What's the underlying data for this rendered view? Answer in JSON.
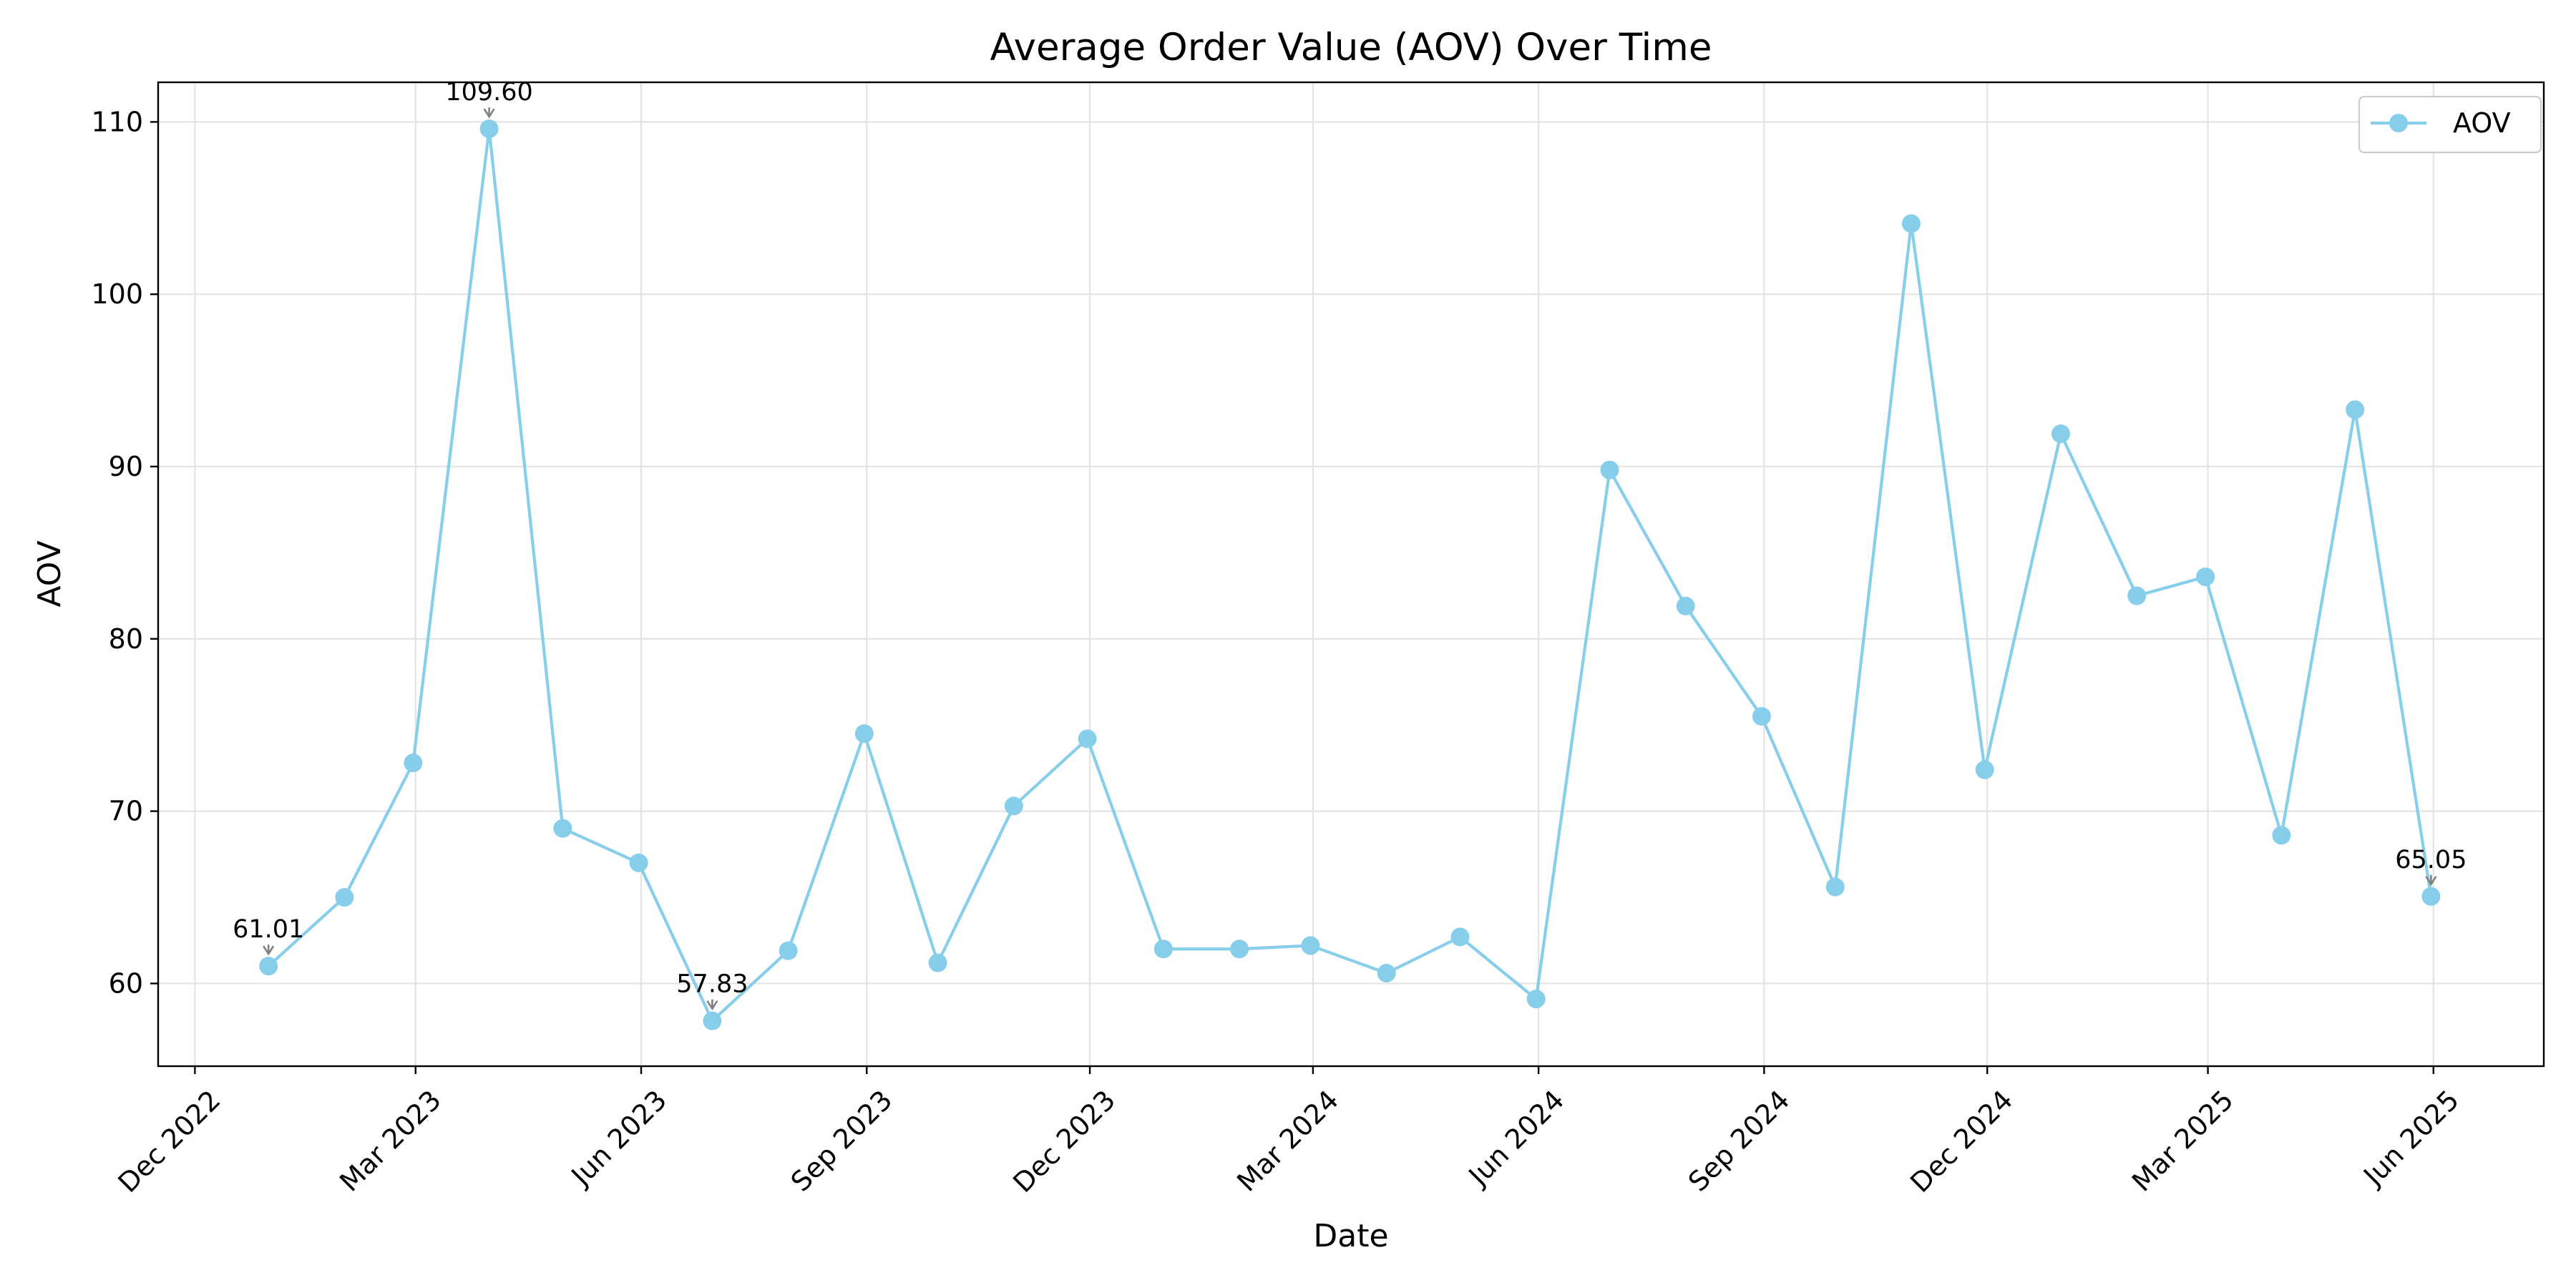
{
  "chart_data": {
    "type": "line",
    "title": "Average Order Value (AOV) Over Time",
    "xlabel": "Date",
    "ylabel": "AOV",
    "xlim": [
      "2022-11-16",
      "2025-07-16"
    ],
    "ylim": [
      55.2,
      112.3
    ],
    "grid": true,
    "legend_placement": "top-right",
    "x_ticks": [
      {
        "date": "2022-12-01",
        "label": "Dec 2022"
      },
      {
        "date": "2023-03-01",
        "label": "Mar 2023"
      },
      {
        "date": "2023-06-01",
        "label": "Jun 2023"
      },
      {
        "date": "2023-09-01",
        "label": "Sep 2023"
      },
      {
        "date": "2023-12-01",
        "label": "Dec 2023"
      },
      {
        "date": "2024-03-01",
        "label": "Mar 2024"
      },
      {
        "date": "2024-06-01",
        "label": "Jun 2024"
      },
      {
        "date": "2024-09-01",
        "label": "Sep 2024"
      },
      {
        "date": "2024-12-01",
        "label": "Dec 2024"
      },
      {
        "date": "2025-03-01",
        "label": "Mar 2025"
      },
      {
        "date": "2025-06-01",
        "label": "Jun 2025"
      }
    ],
    "y_ticks": [
      60,
      70,
      80,
      90,
      100,
      110
    ],
    "series": [
      {
        "name": "AOV",
        "color": "#87ceeb",
        "marker": "circle",
        "x": [
          "2022-12-31",
          "2023-01-31",
          "2023-02-28",
          "2023-03-31",
          "2023-04-30",
          "2023-05-31",
          "2023-06-30",
          "2023-07-31",
          "2023-08-31",
          "2023-09-30",
          "2023-10-31",
          "2023-11-30",
          "2023-12-31",
          "2024-01-31",
          "2024-02-29",
          "2024-03-31",
          "2024-04-30",
          "2024-05-31",
          "2024-06-30",
          "2024-07-31",
          "2024-08-31",
          "2024-09-30",
          "2024-10-31",
          "2024-11-30",
          "2024-12-31",
          "2025-01-31",
          "2025-02-28",
          "2025-03-31",
          "2025-04-30",
          "2025-05-31"
        ],
        "values": [
          61.01,
          65.0,
          72.8,
          109.6,
          69.0,
          67.0,
          57.83,
          61.9,
          74.5,
          61.2,
          70.3,
          74.2,
          62.0,
          62.0,
          62.2,
          60.6,
          62.7,
          59.1,
          89.8,
          81.9,
          75.5,
          65.6,
          104.1,
          72.4,
          91.9,
          82.5,
          83.6,
          68.6,
          93.3,
          65.05
        ]
      }
    ],
    "annotations": [
      {
        "x": "2022-12-31",
        "y": 61.01,
        "label": "61.01"
      },
      {
        "x": "2023-03-31",
        "y": 109.6,
        "label": "109.60"
      },
      {
        "x": "2023-06-30",
        "y": 57.83,
        "label": "57.83"
      },
      {
        "x": "2025-05-31",
        "y": 65.05,
        "label": "65.05"
      }
    ]
  }
}
